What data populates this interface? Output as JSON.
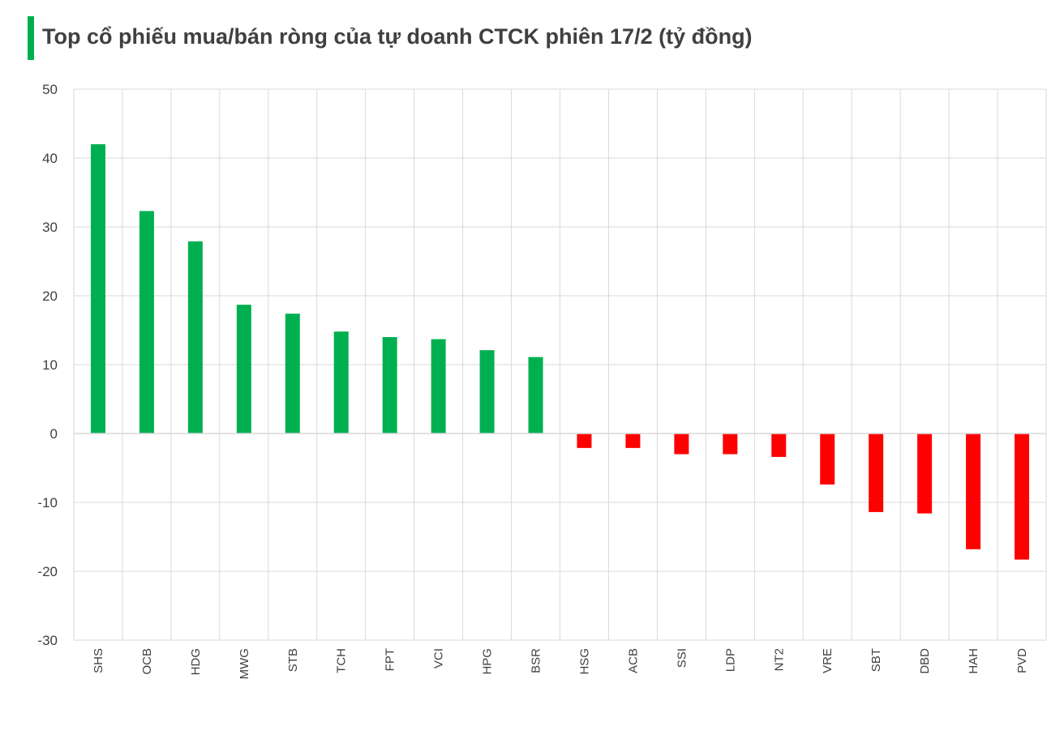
{
  "chart_data": {
    "type": "bar",
    "title": "Top cổ phiếu mua/bán ròng của tự doanh CTCK phiên 17/2 (tỷ đồng)",
    "categories": [
      "SHS",
      "OCB",
      "HDG",
      "MWG",
      "STB",
      "TCH",
      "FPT",
      "VCI",
      "HPG",
      "BSR",
      "HSG",
      "ACB",
      "SSI",
      "LDP",
      "NT2",
      "VRE",
      "SBT",
      "DBD",
      "HAH",
      "PVD"
    ],
    "values": [
      42.0,
      32.3,
      27.9,
      18.7,
      17.4,
      14.8,
      14.0,
      13.7,
      12.1,
      11.1,
      -2.1,
      -2.1,
      -3.0,
      -3.0,
      -3.4,
      -7.4,
      -11.4,
      -11.6,
      -16.8,
      -18.3
    ],
    "ylim": [
      -30,
      50
    ],
    "yticks": [
      50,
      40,
      30,
      20,
      10,
      0,
      -10,
      -20,
      -30
    ],
    "grid": true,
    "colors": {
      "positive": "#00b050",
      "negative": "#ff0000",
      "title_accent": "#00b050",
      "grid": "#d9d9d9"
    }
  }
}
